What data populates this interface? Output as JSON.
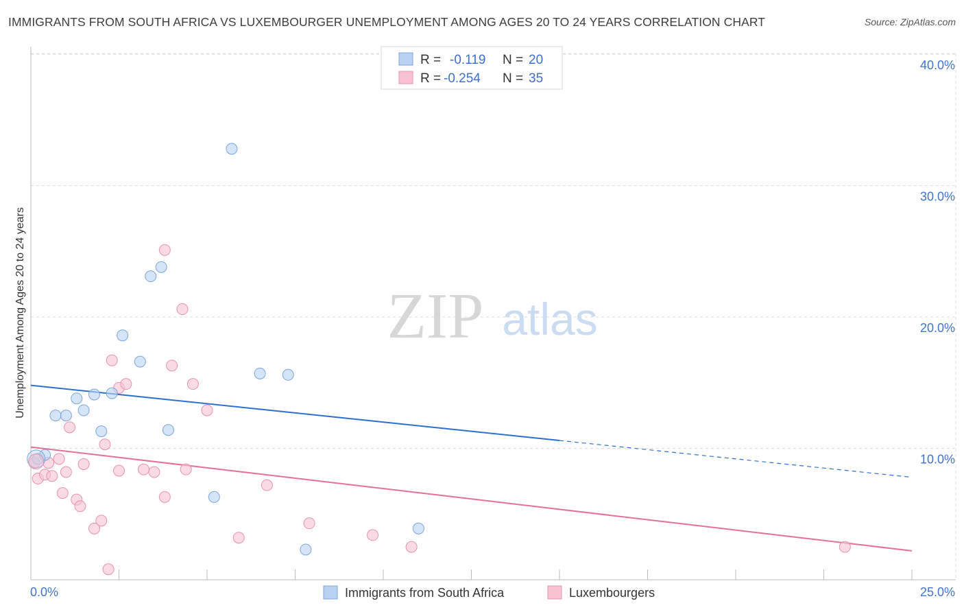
{
  "title": "IMMIGRANTS FROM SOUTH AFRICA VS LUXEMBOURGER UNEMPLOYMENT AMONG AGES 20 TO 24 YEARS CORRELATION CHART",
  "source": "Source: ZipAtlas.com",
  "watermark": {
    "zip": "ZIP",
    "atlas": "atlas"
  },
  "colors": {
    "blue_fill": "#b9d2f2",
    "blue_stroke": "#7aa6dc",
    "blue_line": "#2d6fcf",
    "pink_fill": "#f7c3d3",
    "pink_stroke": "#e892ad",
    "pink_line": "#e46f98",
    "axis_text": "#3f74c6",
    "grid": "#dddddd"
  },
  "legend_stats": [
    {
      "r_label": "R =",
      "r_value": "-0.119",
      "n_label": "N =",
      "n_value": "20"
    },
    {
      "r_label": "R =",
      "r_value": "-0.254",
      "n_label": "N =",
      "n_value": "35"
    }
  ],
  "chart_data": {
    "type": "scatter",
    "title": "IMMIGRANTS FROM SOUTH AFRICA VS LUXEMBOURGER UNEMPLOYMENT AMONG AGES 20 TO 24 YEARS CORRELATION CHART",
    "xlabel": "",
    "ylabel": "Unemployment Among Ages 20 to 24 years",
    "xlim": [
      0,
      25
    ],
    "ylim": [
      0,
      40
    ],
    "x_tick_labels": [
      "0.0%",
      "25.0%"
    ],
    "y_ticks": [
      10,
      20,
      30,
      40
    ],
    "y_tick_labels": [
      "10.0%",
      "20.0%",
      "30.0%",
      "40.0%"
    ],
    "grid": true,
    "legend_position": "bottom",
    "series": [
      {
        "name": "Immigrants from South Africa",
        "color": "blue",
        "r": -0.119,
        "n": 20,
        "trend": {
          "x0": 0,
          "y0": 14.8,
          "x1": 15,
          "y1": 10.6,
          "dash_to_x": 25,
          "dash_to_y": 7.8
        },
        "points": [
          [
            0.2,
            9.2
          ],
          [
            0.4,
            9.5
          ],
          [
            0.7,
            12.5
          ],
          [
            1.0,
            12.5
          ],
          [
            1.3,
            13.8
          ],
          [
            1.5,
            12.9
          ],
          [
            1.8,
            14.1
          ],
          [
            2.0,
            11.3
          ],
          [
            2.3,
            14.2
          ],
          [
            2.6,
            18.6
          ],
          [
            3.1,
            16.6
          ],
          [
            3.4,
            23.1
          ],
          [
            3.7,
            23.8
          ],
          [
            3.9,
            11.4
          ],
          [
            5.2,
            6.3
          ],
          [
            5.7,
            32.8
          ],
          [
            6.5,
            15.7
          ],
          [
            7.3,
            15.6
          ],
          [
            7.8,
            2.3
          ],
          [
            11.0,
            3.9
          ]
        ]
      },
      {
        "name": "Luxembourgers",
        "color": "pink",
        "r": -0.254,
        "n": 35,
        "trend": {
          "x0": 0,
          "y0": 10.1,
          "x1": 25,
          "y1": 2.2
        },
        "points": [
          [
            0.1,
            8.9
          ],
          [
            0.2,
            7.7
          ],
          [
            0.4,
            8.0
          ],
          [
            0.5,
            8.9
          ],
          [
            0.6,
            7.9
          ],
          [
            0.8,
            9.2
          ],
          [
            0.9,
            6.6
          ],
          [
            1.0,
            8.2
          ],
          [
            1.1,
            11.6
          ],
          [
            1.3,
            6.1
          ],
          [
            1.4,
            5.6
          ],
          [
            1.5,
            8.8
          ],
          [
            1.8,
            3.9
          ],
          [
            2.0,
            4.5
          ],
          [
            2.1,
            10.3
          ],
          [
            2.2,
            0.8
          ],
          [
            2.3,
            16.7
          ],
          [
            2.5,
            14.6
          ],
          [
            2.5,
            8.3
          ],
          [
            2.7,
            14.9
          ],
          [
            3.2,
            8.4
          ],
          [
            3.5,
            8.2
          ],
          [
            3.8,
            6.3
          ],
          [
            3.8,
            25.1
          ],
          [
            4.0,
            16.3
          ],
          [
            4.3,
            20.6
          ],
          [
            4.4,
            8.4
          ],
          [
            4.6,
            14.9
          ],
          [
            5.0,
            12.9
          ],
          [
            5.9,
            3.2
          ],
          [
            6.7,
            7.2
          ],
          [
            7.9,
            4.3
          ],
          [
            9.7,
            3.4
          ],
          [
            10.8,
            2.5
          ],
          [
            23.1,
            2.5
          ]
        ]
      }
    ]
  }
}
